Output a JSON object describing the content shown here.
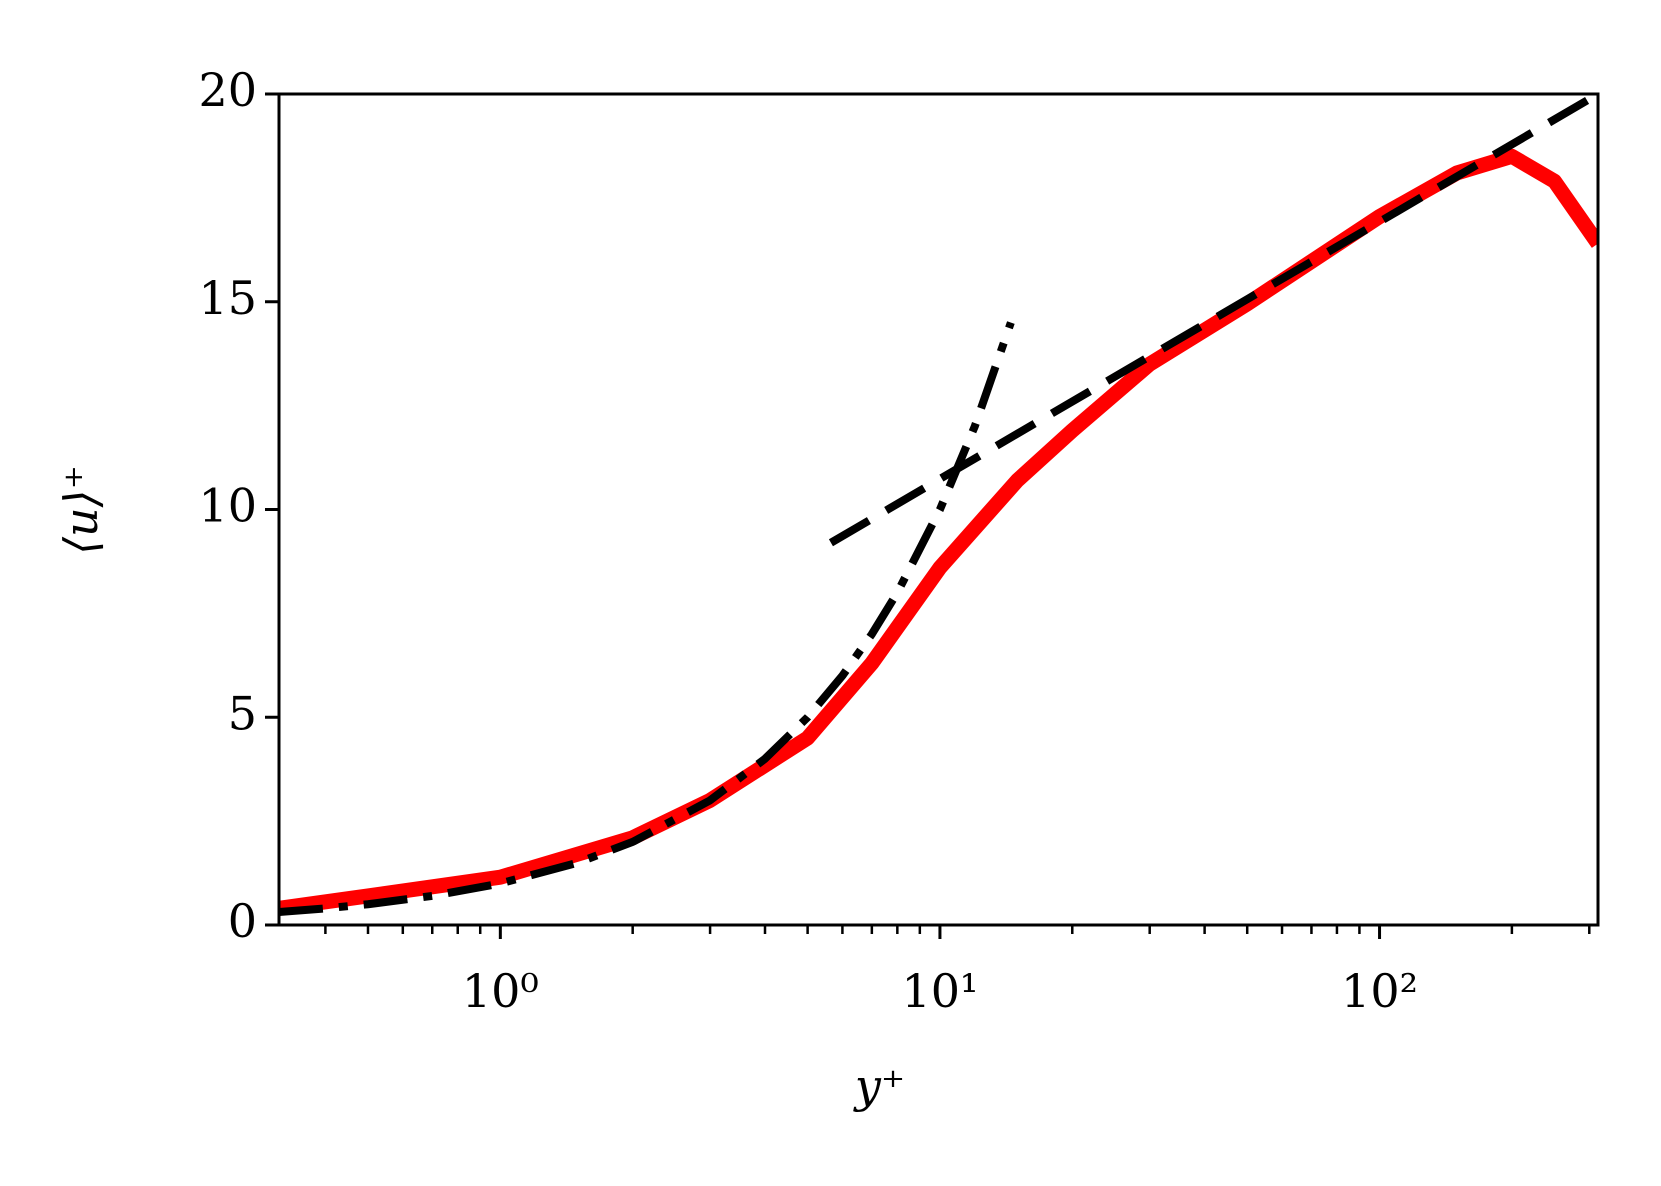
{
  "chart_data": {
    "type": "line",
    "xlabel": "y⁺",
    "ylabel": "⟨u⟩⁺",
    "xscale": "log",
    "xlim": [
      0.3137,
      314
    ],
    "ylim": [
      0,
      20
    ],
    "xticks": [
      {
        "value": 1,
        "label": "10⁰"
      },
      {
        "value": 10,
        "label": "10¹"
      },
      {
        "value": 100,
        "label": "10²"
      }
    ],
    "xminorticks": [
      0.4,
      0.5,
      0.6,
      0.7,
      0.8,
      0.9,
      2,
      3,
      4,
      5,
      6,
      7,
      8,
      9,
      20,
      30,
      40,
      50,
      60,
      70,
      80,
      90,
      200,
      300
    ],
    "yticks": [
      0,
      5,
      10,
      15,
      20
    ],
    "series": [
      {
        "color": "#ff0000",
        "dash": "solid",
        "x": [
          0.3137,
          0.5,
          1,
          2,
          3,
          5,
          7,
          10,
          15,
          20,
          30,
          50,
          100,
          150,
          200,
          250,
          314
        ],
        "values": [
          0.4,
          0.7,
          1.15,
          2.1,
          3.0,
          4.5,
          6.3,
          8.6,
          10.7,
          11.9,
          13.5,
          14.95,
          17.05,
          18.1,
          18.5,
          17.9,
          16.4
        ]
      },
      {
        "color": "#000000",
        "dash": "dashdot",
        "x": [
          0.3137,
          0.4,
          0.5,
          0.7,
          1,
          1.5,
          2,
          3,
          4,
          5,
          6,
          7,
          8,
          10,
          12,
          14.5
        ],
        "values": [
          0.3137,
          0.4,
          0.5,
          0.7,
          1,
          1.5,
          2,
          3,
          4,
          5,
          6,
          7,
          8,
          10,
          12,
          14.5
        ]
      },
      {
        "color": "#000000",
        "dash": "dashed",
        "x": [
          5.65,
          314
        ],
        "values": [
          9.2,
          20
        ]
      }
    ]
  }
}
